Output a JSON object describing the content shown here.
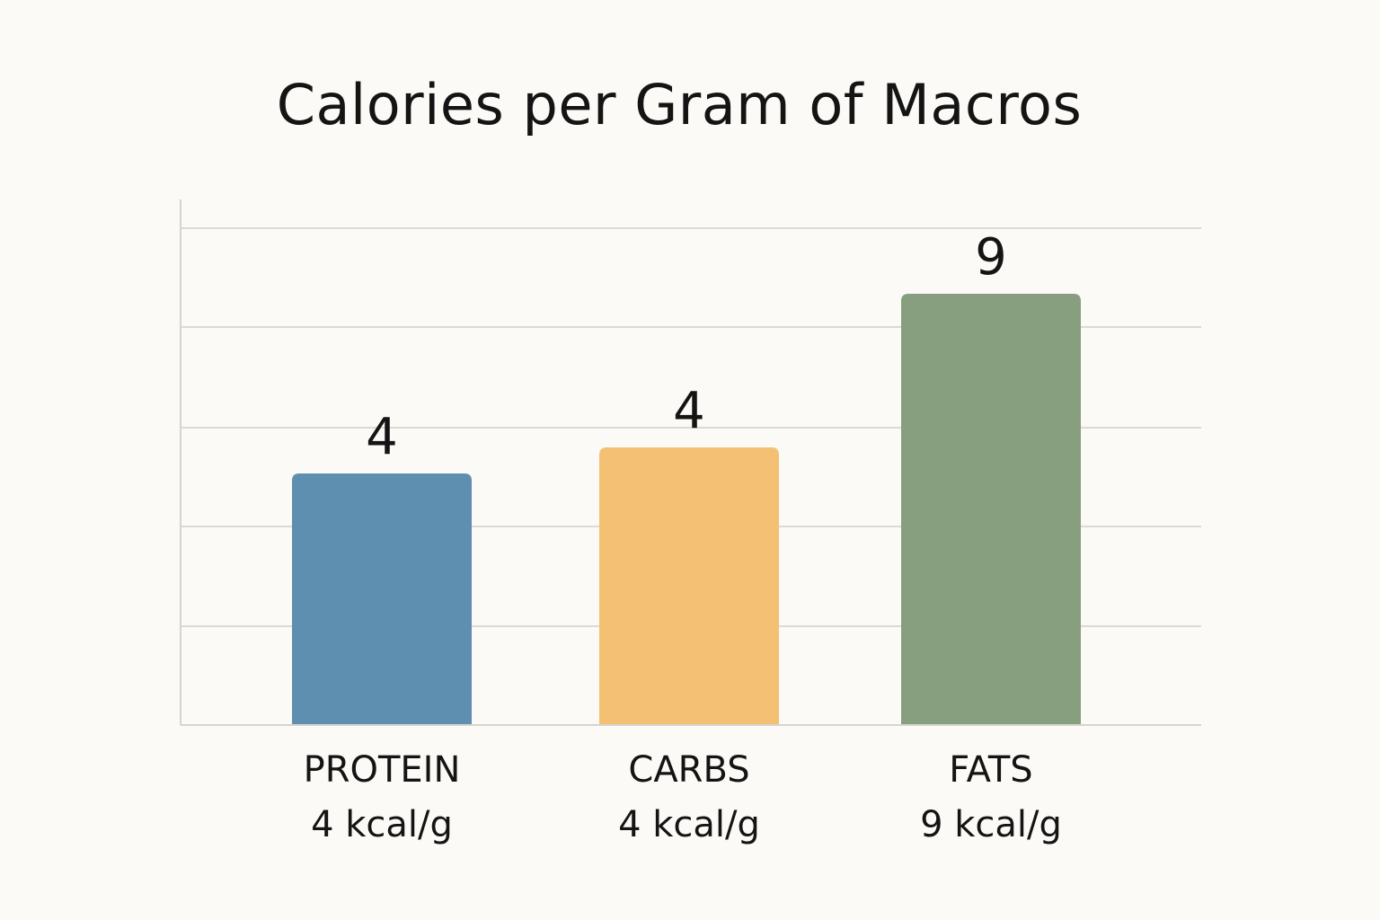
{
  "chart_data": {
    "type": "bar",
    "title": "Calories per Gram of Macros",
    "xlabel": "",
    "ylabel": "",
    "categories": [
      "PROTEIN",
      "CARBS",
      "FATS"
    ],
    "sublabels": [
      "4 kcal/g",
      "4 kcal/g",
      "9 kcal/g"
    ],
    "values": [
      4,
      4,
      9
    ],
    "data_labels": [
      "4",
      "4",
      "9"
    ],
    "colors": [
      "#5e8fb0",
      "#f4c073",
      "#879f7f"
    ],
    "grid": true,
    "legend": "none"
  }
}
